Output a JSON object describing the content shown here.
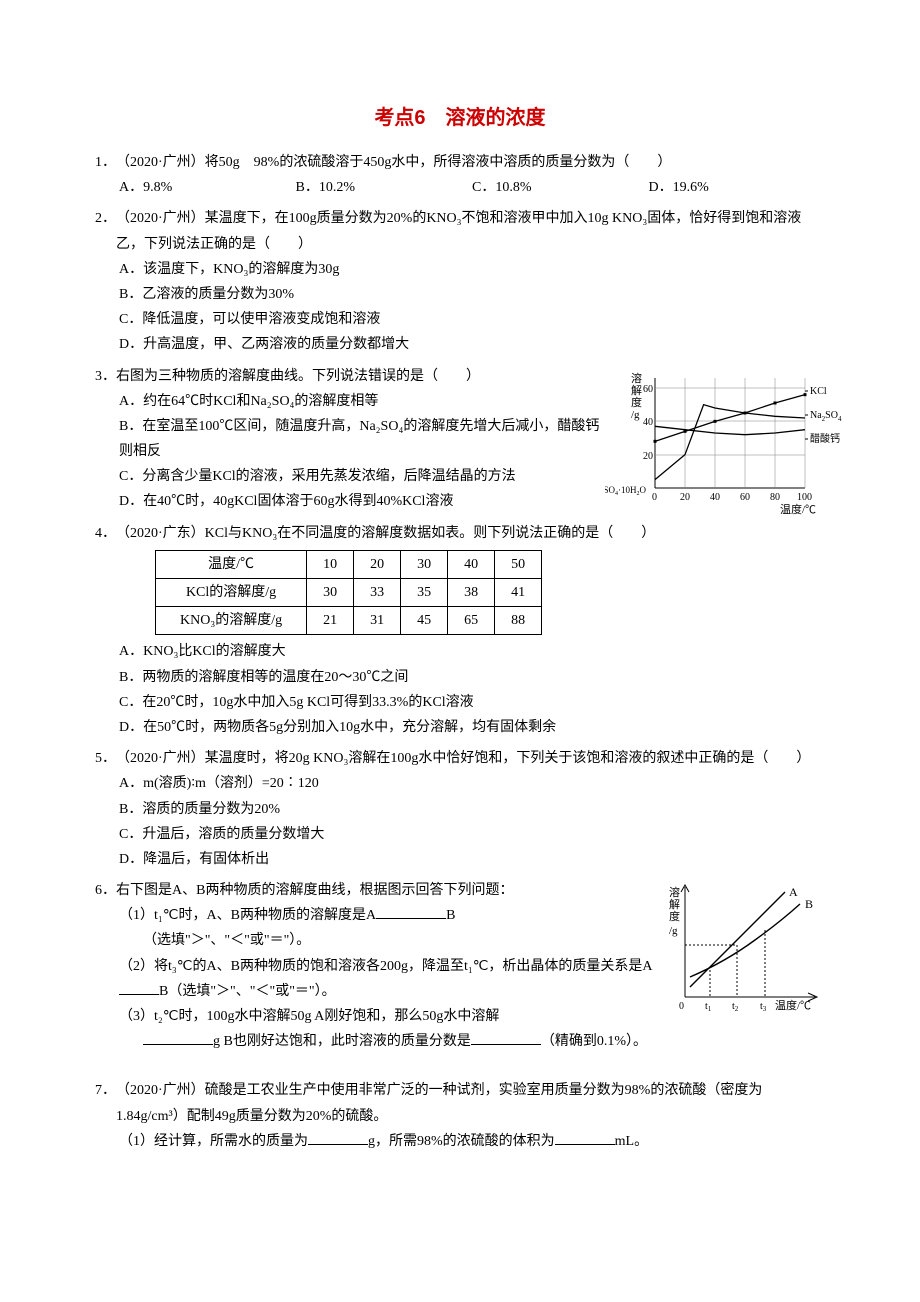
{
  "title": "考点6　溶液的浓度",
  "q1": {
    "num": "1．",
    "text": "（2020·广州）将50g　98%的浓硫酸溶于450g水中，所得溶液中溶质的质量分数为（　　）",
    "a": "A．9.8%",
    "b": "B．10.2%",
    "c": "C．10.8%",
    "d": "D．19.6%"
  },
  "q2": {
    "num": "2．",
    "text": "（2020·广州）某温度下，在100g质量分数为20%的KNO₃不饱和溶液甲中加入10g KNO₃固体，恰好得到饱和溶液乙，下列说法正确的是（　　）",
    "a": "A．该温度下，KNO₃的溶解度为30g",
    "b": "B．乙溶液的质量分数为30%",
    "c": "C．降低温度，可以使甲溶液变成饱和溶液",
    "d": "D．升高温度，甲、乙两溶液的质量分数都增大"
  },
  "q3": {
    "num": "3．",
    "text": "右图为三种物质的溶解度曲线。下列说法错误的是（　　）",
    "a": "A．约在64℃时KCl和Na₂SO₄的溶解度相等",
    "b": "B．在室温至100℃区间，随温度升高，Na₂SO₄的溶解度先增大后减小，醋酸钙则相反",
    "c": "C．分离含少量KCl的溶液，采用先蒸发浓缩，后降温结晶的方法",
    "d": "D．在40℃时，40gKCl固体溶于60g水得到40%KCl溶液",
    "chart": {
      "ylabel": "溶解度/g",
      "xlabel": "温度/℃",
      "ymin": 0,
      "ymax": 60,
      "ystep": 20,
      "xmin": 0,
      "xmax": 100,
      "xstep": 20,
      "yticks": [
        "20",
        "40",
        "60"
      ],
      "xticks": [
        "0",
        "20",
        "40",
        "60",
        "80",
        "100"
      ],
      "series1_label": "KCl",
      "series2_label": "Na₂SO₄",
      "series3_label": "醋酸钙",
      "bottom_label": "Na₂SO₄·10H₂O",
      "grid_color": "#808080",
      "line_color": "#000000",
      "kcl_points": [
        [
          0,
          28
        ],
        [
          20,
          34
        ],
        [
          40,
          40
        ],
        [
          60,
          45
        ],
        [
          80,
          51
        ],
        [
          100,
          56
        ]
      ],
      "na2so4_points": [
        [
          0,
          5
        ],
        [
          20,
          20
        ],
        [
          32.4,
          50
        ],
        [
          40,
          48
        ],
        [
          60,
          45
        ],
        [
          80,
          43
        ],
        [
          100,
          42
        ]
      ],
      "cacetate_points": [
        [
          0,
          37
        ],
        [
          20,
          35
        ],
        [
          40,
          33
        ],
        [
          60,
          32
        ],
        [
          80,
          33
        ],
        [
          100,
          35
        ]
      ]
    }
  },
  "q4": {
    "num": "4．",
    "text": "（2020·广东）KCl与KNO₃在不同温度的溶解度数据如表。则下列说法正确的是（　　）",
    "table": {
      "header": [
        "温度/℃",
        "10",
        "20",
        "30",
        "40",
        "50"
      ],
      "row1": [
        "KCl的溶解度/g",
        "30",
        "33",
        "35",
        "38",
        "41"
      ],
      "row2": [
        "KNO₃的溶解度/g",
        "21",
        "31",
        "45",
        "65",
        "88"
      ]
    },
    "a": "A．KNO₃比KCl的溶解度大",
    "b": "B．两物质的溶解度相等的温度在20～30℃之间",
    "c": "C．在20℃时，10g水中加入5g KCl可得到33.3%的KCl溶液",
    "d": "D．在50℃时，两物质各5g分别加入10g水中，充分溶解，均有固体剩余"
  },
  "q5": {
    "num": "5．",
    "text": "（2020·广州）某温度时，将20g KNO₃溶解在100g水中恰好饱和，下列关于该饱和溶液的叙述中正确的是（　　）",
    "a": "A．m(溶质)∶m（溶剂）=20∶120",
    "b": "B．溶质的质量分数为20%",
    "c": "C．升温后，溶质的质量分数增大",
    "d": "D．降温后，有固体析出"
  },
  "q6": {
    "num": "6．",
    "text": "右下图是A、B两种物质的溶解度曲线，根据图示回答下列问题：",
    "s1a": "（1）t₁℃时，A、B两种物质的溶解度是A",
    "s1b": "B",
    "s1c": "（选填\"＞\"、\"＜\"或\"＝\"）。",
    "s2a": "（2）将t₃℃的A、B两种物质的饱和溶液各200g，降温至t₁℃，析出晶体的质量关系是A",
    "s2b": "B（选填\"＞\"、\"＜\"或\"＝\"）。",
    "s3a": "（3）t₂℃时，100g水中溶解50g A刚好饱和，那么50g水中溶解",
    "s3b": "g B也刚好达饱和，此时溶液的质量分数是",
    "s3c": "（精确到0.1%）。",
    "chart": {
      "ylabel": "溶解度/g",
      "xlabel": "温度/℃",
      "labelA": "A",
      "labelB": "B",
      "t1": "t₁",
      "t2": "t₂",
      "t3": "t₃",
      "zero": "0"
    }
  },
  "q7": {
    "num": "7．",
    "text": "（2020·广州）硫酸是工农业生产中使用非常广泛的一种试剂，实验室用质量分数为98%的浓硫酸（密度为1.84g/cm³）配制49g质量分数为20%的硫酸。",
    "s1a": "（1）经计算，所需水的质量为",
    "s1b": "g，所需98%的浓硫酸的体积为",
    "s1c": "mL。"
  }
}
